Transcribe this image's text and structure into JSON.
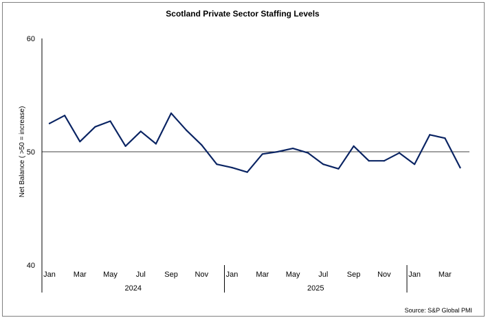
{
  "chart_data": {
    "type": "line",
    "title": "Scotland Private Sector Staffing Levels",
    "ylabel": "Net Balance ( >50 = increase)",
    "xlabel": "",
    "ylim": [
      40,
      60
    ],
    "yticks": [
      "40",
      "50",
      "60"
    ],
    "reference_line": 50,
    "x": [
      "Jan 2024",
      "Feb 2024",
      "Mar 2024",
      "Apr 2024",
      "May 2024",
      "Jun 2024",
      "Jul 2024",
      "Aug 2024",
      "Sep 2024",
      "Oct 2024",
      "Nov 2024",
      "Dec 2024",
      "Jan 2025",
      "Feb 2025",
      "Mar 2025",
      "Apr 2025",
      "May 2025",
      "Jun 2025",
      "Jul 2025",
      "Aug 2025",
      "Sep 2025",
      "Oct 2025",
      "Nov 2025",
      "Dec 2025",
      "Jan 2026",
      "Feb 2026",
      "Mar 2026",
      "Apr 2026"
    ],
    "month_labels": [
      "Jan",
      "",
      "Mar",
      "",
      "May",
      "",
      "Jul",
      "",
      "Sep",
      "",
      "Nov",
      "",
      "Jan",
      "",
      "Mar",
      "",
      "May",
      "",
      "Jul",
      "",
      "Sep",
      "",
      "Nov",
      "",
      "Jan",
      "",
      "Mar",
      ""
    ],
    "year_groups": [
      {
        "label": "2024",
        "start": 0,
        "end": 11
      },
      {
        "label": "2025",
        "start": 12,
        "end": 23
      },
      {
        "label": "",
        "start": 24,
        "end": 27
      }
    ],
    "series": [
      {
        "color": "#0a2463",
        "values": [
          52.5,
          53.2,
          50.9,
          52.2,
          52.7,
          50.5,
          51.8,
          50.7,
          53.4,
          51.9,
          50.6,
          48.9,
          48.6,
          48.2,
          49.8,
          50.0,
          50.3,
          49.9,
          48.9,
          48.5,
          50.5,
          49.2,
          49.2,
          49.9,
          48.9,
          51.5,
          51.2,
          48.6
        ]
      }
    ],
    "grid": false,
    "legend": "none"
  },
  "source": "Source: S&P Global PMI"
}
